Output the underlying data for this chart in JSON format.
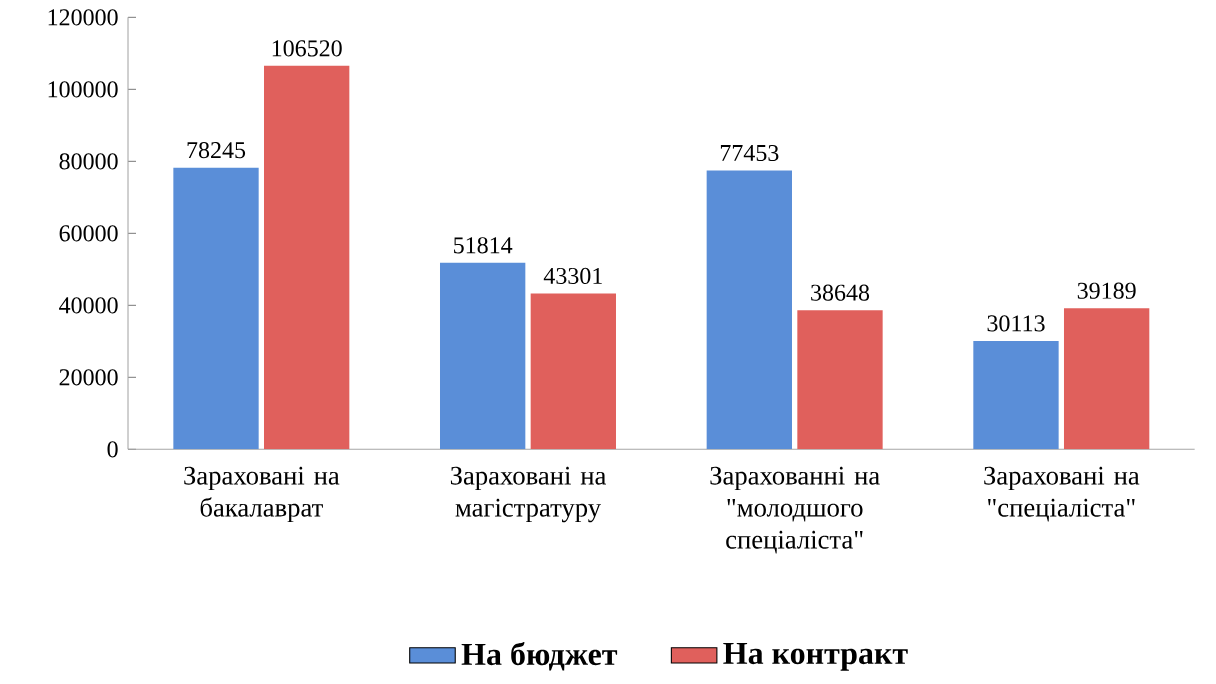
{
  "chart_data": {
    "type": "bar",
    "categories": [
      "Зараховані на бакалаврат",
      "Зараховані на магістратуру",
      "Зарахованні на \"молодшого спеціаліста\"",
      "Зараховані на \"спеціаліста\""
    ],
    "series": [
      {
        "name": "На бюджет",
        "color": "#5a8ed8",
        "values": [
          78245,
          51814,
          77453,
          30113
        ]
      },
      {
        "name": "На контракт",
        "color": "#e0605c",
        "values": [
          106520,
          43301,
          38648,
          39189
        ]
      }
    ],
    "ylim": [
      0,
      120000
    ],
    "yticks": [
      0,
      20000,
      40000,
      60000,
      80000,
      100000,
      120000
    ],
    "data_labels": true,
    "legend": "bottom",
    "grid": false
  }
}
